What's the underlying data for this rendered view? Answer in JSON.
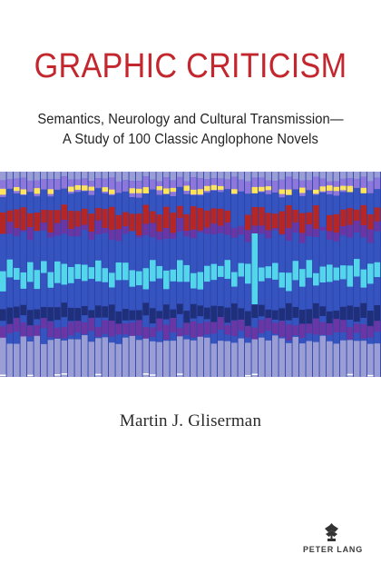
{
  "cover": {
    "title": "GRAPHIC CRITICISM",
    "subtitle_line_1": "Semantics, Neurology and Cultural Transmission—",
    "subtitle_line_2": "A Study of 100 Classic Anglophone Novels",
    "author": "Martin J. Gliserman",
    "publisher": "PETER LANG",
    "publisher_icon": "peter-lang-icon",
    "title_color": "#c3262d",
    "artwork_colors": [
      "#1f2f79",
      "#2c43a8",
      "#3654c0",
      "#6f71d3",
      "#9a9ed5",
      "#8d77da",
      "#6a36a3",
      "#53d5ec",
      "#b42726",
      "#ffe45c",
      "#ffffff"
    ]
  }
}
